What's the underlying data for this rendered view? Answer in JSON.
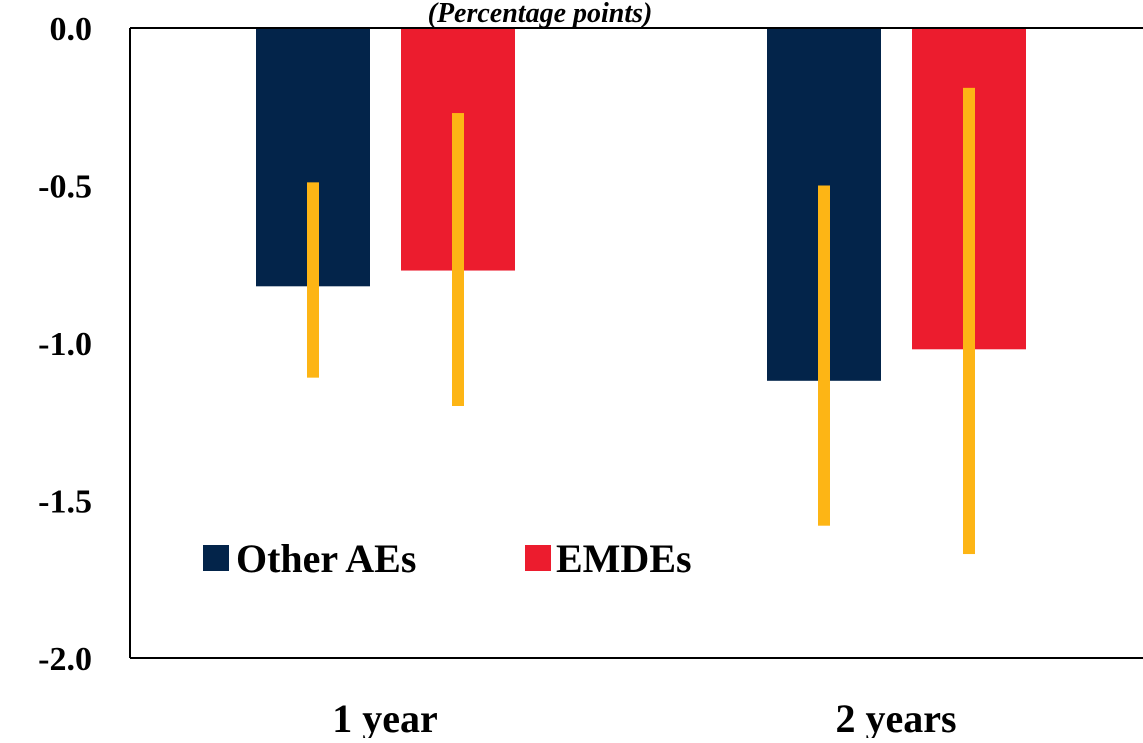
{
  "colors": {
    "other_aes": "#03244A",
    "emdes": "#EC1C2E",
    "error_bar": "#FDB515",
    "axis": "#000000"
  },
  "chart_data": {
    "type": "bar",
    "subtitle": "(Percentage points)",
    "categories": [
      "1 year",
      "2 years"
    ],
    "series": [
      {
        "name": "Other AEs",
        "values": [
          -0.82,
          -1.12
        ],
        "error_low": [
          -1.11,
          -1.58
        ],
        "error_high": [
          -0.49,
          -0.5
        ]
      },
      {
        "name": "EMDEs",
        "values": [
          -0.77,
          -1.02
        ],
        "error_low": [
          -1.2,
          -1.67
        ],
        "error_high": [
          -0.27,
          -0.19
        ]
      }
    ],
    "ylim": [
      -2.0,
      0.0
    ],
    "yticks": [
      0.0,
      -0.5,
      -1.0,
      -1.5,
      -2.0
    ],
    "ytick_labels": [
      "0.0",
      "-0.5",
      "-1.0",
      "-1.5",
      "-2.0"
    ],
    "legend_position": "lower-left",
    "grid": false
  }
}
